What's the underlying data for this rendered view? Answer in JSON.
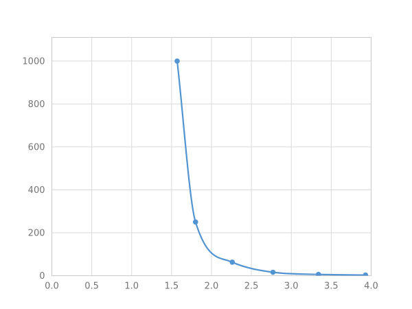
{
  "page": {
    "background_color": "#ffffff"
  },
  "chart_data": {
    "type": "line",
    "title": "",
    "xlabel": "",
    "ylabel": "",
    "x": [
      1.57,
      1.8,
      2.26,
      2.77,
      3.34,
      3.93
    ],
    "y": [
      1000,
      250,
      63,
      16,
      6,
      3
    ],
    "xlim": [
      0,
      4.0
    ],
    "ylim": [
      0,
      1110
    ],
    "xticks": [
      0,
      0.5,
      1.0,
      1.5,
      2.0,
      2.5,
      3.0,
      3.5,
      4.0
    ],
    "xtick_labels": [
      "0.0",
      "0.5",
      "1.0",
      "1.5",
      "2.0",
      "2.5",
      "3.0",
      "3.5",
      "4.0"
    ],
    "yticks": [
      0,
      200,
      400,
      600,
      800,
      1000
    ],
    "ytick_labels": [
      "0",
      "200",
      "400",
      "600",
      "800",
      "1000"
    ],
    "grid": true,
    "legend": "none",
    "curve": "smooth-monotone",
    "marker": "circle",
    "line_color": "#5294d1",
    "marker_color": "#5294d1",
    "grid_color": "#d9d9d9",
    "axis_border_color": "#c9c9c9",
    "tick_label_color": "#737373",
    "plot_background_color": "#ffffff"
  }
}
